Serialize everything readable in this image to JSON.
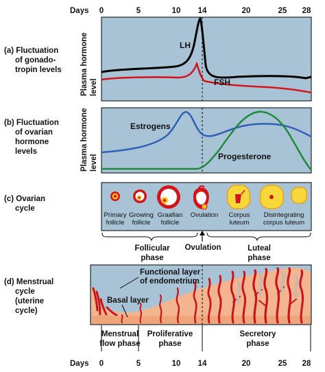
{
  "axis": {
    "label_top": "Days",
    "label_bottom": "Days",
    "ticks": [
      "0",
      "5",
      "10",
      "14",
      "20",
      "25",
      "28"
    ]
  },
  "panel_a": {
    "title": "(a) Fluctuation",
    "title2": "of gonado-",
    "title3": "tropin levels",
    "ylabel": "Plasma hormone",
    "ylabel2": "level",
    "lh_label": "LH",
    "fsh_label": "FSH",
    "colors": {
      "lh": "#000000",
      "fsh": "#d4141a",
      "bg": "#a9c3d6"
    }
  },
  "panel_b": {
    "title": "(b) Fluctuation",
    "title2": "of ovarian",
    "title3": "hormone",
    "title4": "levels",
    "ylabel": "Plasma hormone",
    "ylabel2": "level",
    "estrogens_label": "Estrogens",
    "progesterone_label": "Progesterone",
    "colors": {
      "estrogens": "#2f5fb7",
      "progesterone": "#1e8a3a",
      "bg": "#a9c3d6"
    }
  },
  "panel_c": {
    "title": "(c) Ovarian",
    "title2": "cycle",
    "stages": [
      {
        "line1": "Primary",
        "line2": "follicle"
      },
      {
        "line1": "Growing",
        "line2": "follicle"
      },
      {
        "line1": "Graafian",
        "line2": "follicle"
      },
      {
        "line1": "Ovulation",
        "line2": ""
      },
      {
        "line1": "Corpus",
        "line2": "luteum"
      },
      {
        "line1": "Disintegrating",
        "line2": "corpus luteum"
      }
    ],
    "follicular_1": "Follicular",
    "follicular_2": "phase",
    "ovulation": "Ovulation",
    "luteal_1": "Luteal",
    "luteal_2": "phase"
  },
  "panel_d": {
    "title": "(d) Menstrual",
    "title2": "cycle",
    "title3": "(uterine",
    "title4": "cycle)",
    "functional_1": "Functional layer",
    "functional_2": "of endometrium",
    "basal": "Basal layer",
    "menstrual_1": "Menstrual",
    "menstrual_2": "flow phase",
    "proliferative_1": "Proliferative",
    "proliferative_2": "phase",
    "secretory_1": "Secretory",
    "secretory_2": "phase",
    "colors": {
      "endometrium": "#f2b58f",
      "vessels": "#c8141b",
      "bg": "#a9c3d6"
    }
  }
}
